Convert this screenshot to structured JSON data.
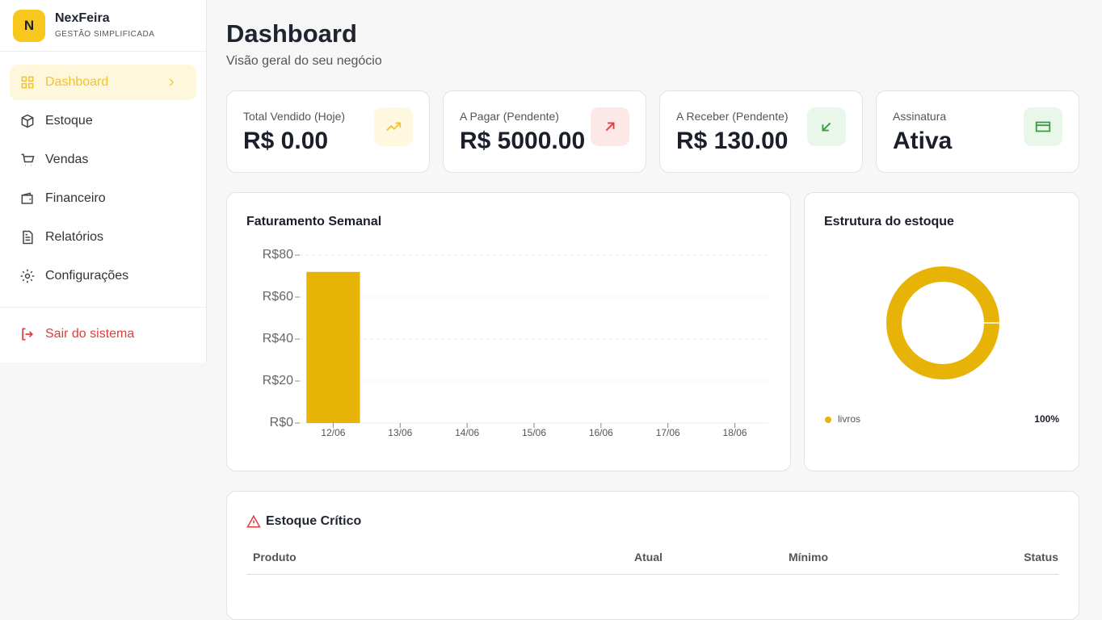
{
  "sidebar": {
    "brand": "NexFeira",
    "tagline": "GESTÃO SIMPLIFICADA",
    "logo": "N",
    "nav": [
      "Dashboard",
      "Estoque",
      "Vendas",
      "Financeiro",
      "Relatórios",
      "Configurações"
    ],
    "logout": "Sair do sistema"
  },
  "header": {
    "title": "Dashboard",
    "subtitle": "Visão geral do seu negócio"
  },
  "cards": [
    {
      "label": "Total Vendido (Hoje)",
      "value": "R$ 0.00"
    },
    {
      "label": "A Pagar (Pendente)",
      "value": "R$ 5000.00"
    },
    {
      "label": "A Receber (Pendente)",
      "value": "R$ 130.00"
    },
    {
      "label": "Assinatura",
      "value": "Ativa"
    }
  ],
  "chart_data": [
    {
      "type": "bar",
      "title": "Faturamento Semanal",
      "categories": [
        "12/06",
        "13/06",
        "14/06",
        "15/06",
        "16/06",
        "17/06",
        "18/06"
      ],
      "values": [
        72,
        0,
        0,
        0,
        0,
        0,
        0
      ],
      "color": "#e8b307",
      "ylim": [
        0,
        80
      ],
      "yticks": [
        {
          "value": 0,
          "label": "R$0"
        },
        {
          "value": 20,
          "label": "R$20"
        },
        {
          "value": 40,
          "label": "R$40"
        },
        {
          "value": 60,
          "label": "R$60"
        },
        {
          "value": 80,
          "label": "R$80"
        }
      ],
      "grid": true
    },
    {
      "type": "pie",
      "title": "Estrutura do estoque",
      "categories": [
        "livros"
      ],
      "values": [
        100
      ],
      "value_labels": [
        "100%"
      ],
      "colors": [
        "#e8b307"
      ]
    }
  ],
  "table": {
    "title": "Estoque Crítico",
    "columns": [
      "Produto",
      "Atual",
      "Mínimo",
      "Status"
    ]
  }
}
